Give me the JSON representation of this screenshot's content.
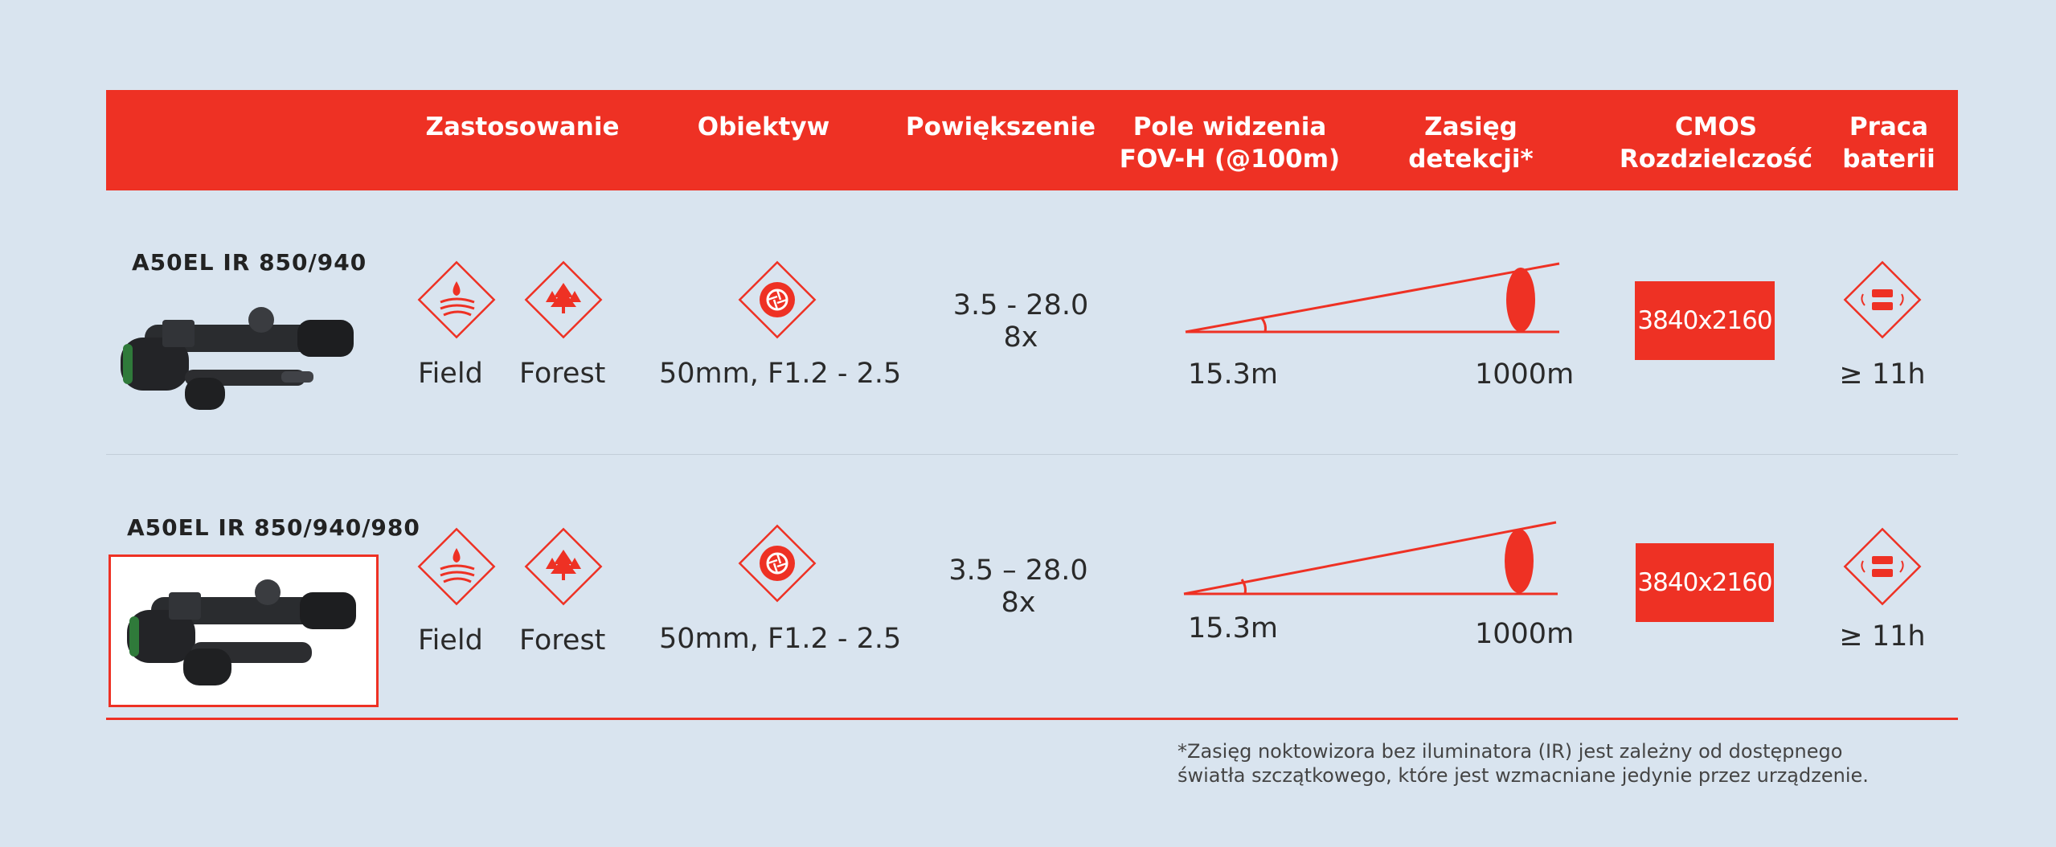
{
  "header": {
    "col_application": "Zastosowanie",
    "col_lens": "Obiektyw",
    "col_magnification": "Powiększenie",
    "col_fov_line1": "Pole widzenia",
    "col_fov_line2": "FOV-H (@100m)",
    "col_range_line1": "Zasięg",
    "col_range_line2": "detekcji*",
    "col_cmos_line1": "CMOS",
    "col_cmos_line2": "Rozdzielczość",
    "col_battery_line1": "Praca",
    "col_battery_line2": "baterii"
  },
  "rows": [
    {
      "model": "A50EL IR 850/940",
      "use1": "Field",
      "use2": "Forest",
      "lens": "50mm, F1.2 - 2.5",
      "mag_line1": "3.5 - 28.0",
      "mag_line2": "8x",
      "fov": "15.3m",
      "range": "1000m",
      "resolution": "3840x2160",
      "battery": "≥ 11h"
    },
    {
      "model": "A50EL IR 850/940/980",
      "use1": "Field",
      "use2": "Forest",
      "lens": "50mm, F1.2 - 2.5",
      "mag_line1": "3.5 – 28.0",
      "mag_line2": "8x",
      "fov": "15.3m",
      "range": "1000m",
      "resolution": "3840x2160",
      "battery": "≥ 11h"
    }
  ],
  "footnote": {
    "line1": "*Zasięg noktowizora bez iluminatora (IR) jest zależny od dostępnego",
    "line2": "światła szczątkowego, które jest wzmacniane jedynie przez urządzenie."
  },
  "colors": {
    "accent": "#ee3124",
    "background": "#d9e4ef"
  },
  "icons": [
    "field-icon",
    "forest-icon",
    "aperture-icon",
    "range-cone-icon",
    "battery-icon",
    "rifle-scope-image"
  ]
}
